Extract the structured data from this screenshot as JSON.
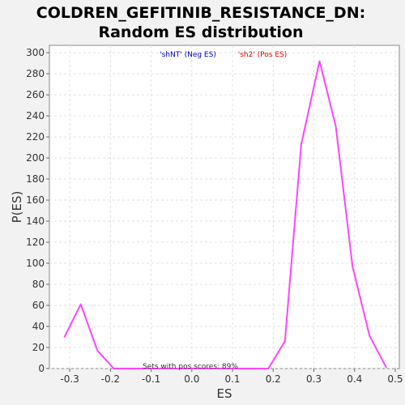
{
  "chart_data": {
    "type": "line",
    "title": "COLDREN_GEFITINIB_RESISTANCE_DN: Random ES distribution",
    "title_lines": [
      "COLDREN_GEFITINIB_RESISTANCE_DN:",
      "Random ES distribution"
    ],
    "xlabel": "ES",
    "ylabel": "P(ES)",
    "xlim": [
      -0.35,
      0.51
    ],
    "ylim": [
      0,
      307
    ],
    "xticks": [
      -0.3,
      -0.2,
      -0.1,
      0.0,
      0.1,
      0.2,
      0.3,
      0.4,
      0.5
    ],
    "xtick_labels": [
      "-0.3",
      "-0.2",
      "-0.1",
      "0.0",
      "0.1",
      "0.2",
      "0.3",
      "0.4",
      "0.5"
    ],
    "yticks": [
      0,
      20,
      40,
      60,
      80,
      100,
      120,
      140,
      160,
      180,
      200,
      220,
      240,
      260,
      280,
      300
    ],
    "ytick_labels": [
      "0",
      "20",
      "40",
      "60",
      "80",
      "100",
      "120",
      "140",
      "160",
      "180",
      "200",
      "220",
      "240",
      "260",
      "280",
      "300"
    ],
    "grid": true,
    "legend": [
      {
        "label": "'shNT' (Neg ES)",
        "color": "#0000cc"
      },
      {
        "label": "'sh2' (Pos ES)",
        "color": "#dd0000"
      }
    ],
    "annotation": "Sets with pos scores: 89%",
    "series": [
      {
        "color": "#ff44ff",
        "x": [
          -0.313,
          -0.273,
          -0.232,
          -0.192,
          -0.151,
          -0.111,
          -0.07,
          -0.03,
          0.011,
          0.051,
          0.092,
          0.132,
          0.172,
          0.188,
          0.229,
          0.269,
          0.314,
          0.354,
          0.395,
          0.437,
          0.478
        ],
        "y": [
          30,
          61,
          17,
          0,
          0,
          0,
          0,
          0,
          0,
          0,
          0,
          0,
          0,
          0,
          26,
          213,
          292,
          230,
          97,
          31,
          1
        ]
      }
    ]
  }
}
